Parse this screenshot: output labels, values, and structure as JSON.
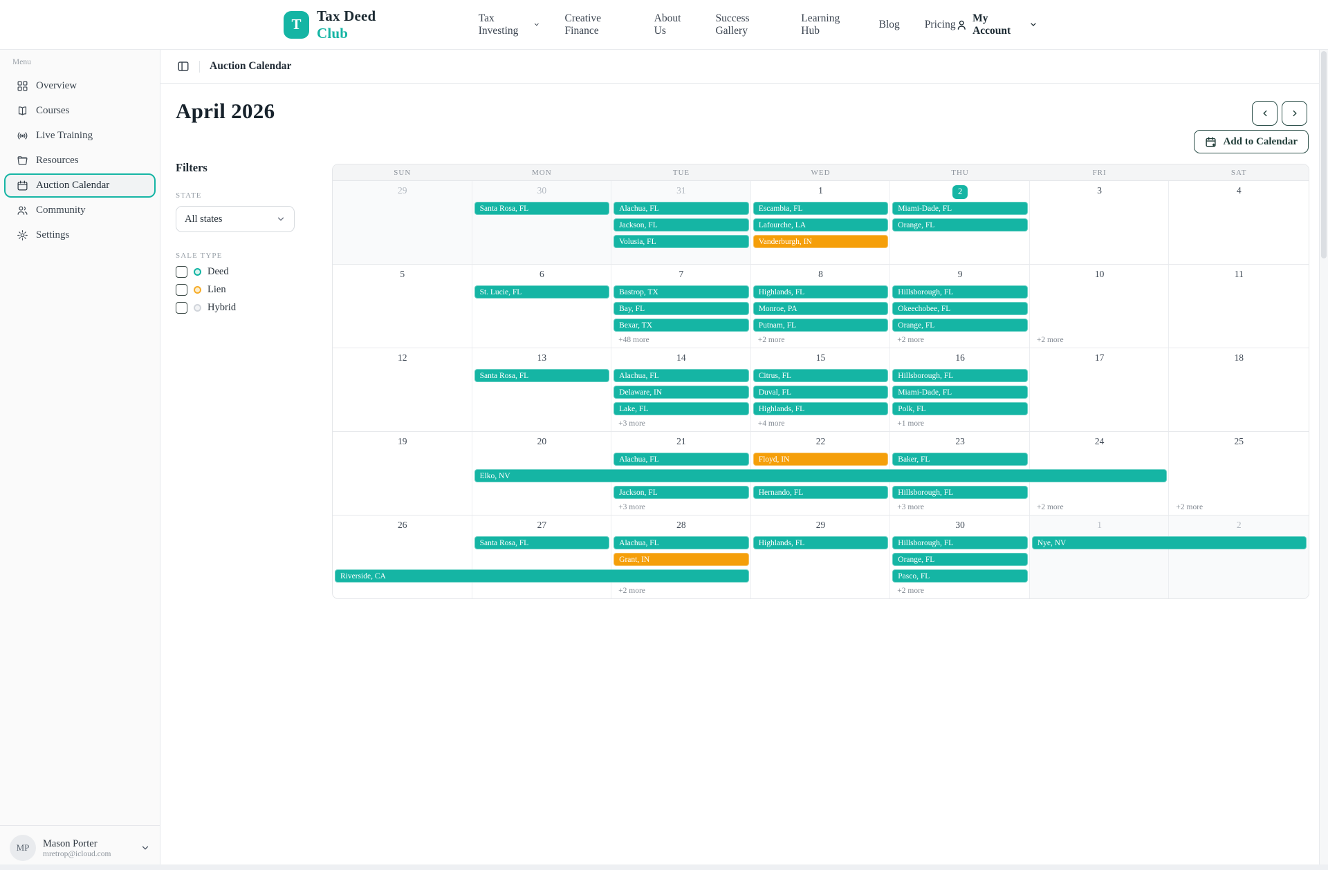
{
  "colors": {
    "teal": "#15b5a4",
    "orange": "#f59f0a"
  },
  "brand": {
    "logo_letter": "T",
    "name_primary": "Tax Deed",
    "name_accent": "Club"
  },
  "top_nav": {
    "items": [
      {
        "label": "Tax Investing",
        "dropdown": true
      },
      {
        "label": "Creative Finance",
        "dropdown": false
      },
      {
        "label": "About Us",
        "dropdown": false
      },
      {
        "label": "Success Gallery",
        "dropdown": false
      },
      {
        "label": "Learning Hub",
        "dropdown": false
      },
      {
        "label": "Blog",
        "dropdown": false
      },
      {
        "label": "Pricing",
        "dropdown": false
      }
    ],
    "account_label": "My Account"
  },
  "sidebar": {
    "section_label": "Menu",
    "items": [
      {
        "label": "Overview",
        "icon": "grid-icon",
        "active": false
      },
      {
        "label": "Courses",
        "icon": "book-icon",
        "active": false
      },
      {
        "label": "Live Training",
        "icon": "broadcast-icon",
        "active": false
      },
      {
        "label": "Resources",
        "icon": "folder-icon",
        "active": false
      },
      {
        "label": "Auction Calendar",
        "icon": "calendar-icon",
        "active": true
      },
      {
        "label": "Community",
        "icon": "users-icon",
        "active": false
      },
      {
        "label": "Settings",
        "icon": "gear-icon",
        "active": false
      }
    ],
    "user": {
      "initials": "MP",
      "name": "Mason Porter",
      "email": "mretrop@icloud.com"
    }
  },
  "breadcrumb": {
    "title": "Auction Calendar"
  },
  "filters": {
    "title": "Filters",
    "state_label": "STATE",
    "state_value": "All states",
    "sale_type_label": "SALE TYPE",
    "types": [
      {
        "label": "Deed",
        "color": "#15b5a4",
        "fill": "#d9f4ef",
        "checked": false
      },
      {
        "label": "Lien",
        "color": "#f6ad2b",
        "fill": "#fdeecd",
        "checked": false
      },
      {
        "label": "Hybrid",
        "color": "#d1d5db",
        "fill": "#f3f4f6",
        "checked": false
      }
    ]
  },
  "calendar": {
    "month_title": "April 2026",
    "add_button_label": "Add to Calendar",
    "day_headers": [
      "SUN",
      "MON",
      "TUE",
      "WED",
      "THU",
      "FRI",
      "SAT"
    ],
    "weeks": [
      {
        "days": [
          {
            "num": "29",
            "muted": true
          },
          {
            "num": "30",
            "muted": true
          },
          {
            "num": "31",
            "muted": true
          },
          {
            "num": "1"
          },
          {
            "num": "2",
            "today": true
          },
          {
            "num": "3"
          },
          {
            "num": "4"
          }
        ],
        "events": [
          {
            "r": 1,
            "c": 2,
            "s": 1,
            "label": "Santa Rosa, FL",
            "type": "deed"
          },
          {
            "r": 1,
            "c": 3,
            "s": 1,
            "label": "Alachua, FL",
            "type": "deed"
          },
          {
            "r": 1,
            "c": 4,
            "s": 1,
            "label": "Escambia, FL",
            "type": "deed"
          },
          {
            "r": 1,
            "c": 5,
            "s": 1,
            "label": "Miami-Dade, FL",
            "type": "deed"
          },
          {
            "r": 2,
            "c": 3,
            "s": 1,
            "label": "Jackson, FL",
            "type": "deed"
          },
          {
            "r": 2,
            "c": 4,
            "s": 1,
            "label": "Lafourche, LA",
            "type": "deed"
          },
          {
            "r": 2,
            "c": 5,
            "s": 1,
            "label": "Orange, FL",
            "type": "deed"
          },
          {
            "r": 3,
            "c": 3,
            "s": 1,
            "label": "Volusia, FL",
            "type": "deed"
          },
          {
            "r": 3,
            "c": 4,
            "s": 1,
            "label": "Vanderburgh, IN",
            "type": "lien"
          }
        ],
        "mores": []
      },
      {
        "days": [
          {
            "num": "5"
          },
          {
            "num": "6"
          },
          {
            "num": "7"
          },
          {
            "num": "8"
          },
          {
            "num": "9"
          },
          {
            "num": "10"
          },
          {
            "num": "11"
          }
        ],
        "events": [
          {
            "r": 1,
            "c": 2,
            "s": 1,
            "label": "St. Lucie, FL",
            "type": "deed"
          },
          {
            "r": 1,
            "c": 3,
            "s": 1,
            "label": "Bastrop, TX",
            "type": "deed"
          },
          {
            "r": 1,
            "c": 4,
            "s": 1,
            "label": "Highlands, FL",
            "type": "deed"
          },
          {
            "r": 1,
            "c": 5,
            "s": 1,
            "label": "Hillsborough, FL",
            "type": "deed"
          },
          {
            "r": 2,
            "c": 3,
            "s": 1,
            "label": "Bay, FL",
            "type": "deed"
          },
          {
            "r": 2,
            "c": 4,
            "s": 1,
            "label": "Monroe, PA",
            "type": "deed"
          },
          {
            "r": 2,
            "c": 5,
            "s": 1,
            "label": "Okeechobee, FL",
            "type": "deed"
          },
          {
            "r": 3,
            "c": 3,
            "s": 1,
            "label": "Bexar, TX",
            "type": "deed"
          },
          {
            "r": 3,
            "c": 4,
            "s": 1,
            "label": "Putnam, FL",
            "type": "deed"
          },
          {
            "r": 3,
            "c": 5,
            "s": 1,
            "label": "Orange, FL",
            "type": "deed"
          }
        ],
        "mores": [
          {
            "c": 3,
            "label": "+48 more"
          },
          {
            "c": 4,
            "label": "+2 more"
          },
          {
            "c": 5,
            "label": "+2 more"
          },
          {
            "c": 6,
            "label": "+2 more"
          }
        ]
      },
      {
        "days": [
          {
            "num": "12"
          },
          {
            "num": "13"
          },
          {
            "num": "14"
          },
          {
            "num": "15"
          },
          {
            "num": "16"
          },
          {
            "num": "17"
          },
          {
            "num": "18"
          }
        ],
        "events": [
          {
            "r": 1,
            "c": 2,
            "s": 1,
            "label": "Santa Rosa, FL",
            "type": "deed"
          },
          {
            "r": 1,
            "c": 3,
            "s": 1,
            "label": "Alachua, FL",
            "type": "deed"
          },
          {
            "r": 1,
            "c": 4,
            "s": 1,
            "label": "Citrus, FL",
            "type": "deed"
          },
          {
            "r": 1,
            "c": 5,
            "s": 1,
            "label": "Hillsborough, FL",
            "type": "deed"
          },
          {
            "r": 2,
            "c": 3,
            "s": 1,
            "label": "Delaware, IN",
            "type": "deed"
          },
          {
            "r": 2,
            "c": 4,
            "s": 1,
            "label": "Duval, FL",
            "type": "deed"
          },
          {
            "r": 2,
            "c": 5,
            "s": 1,
            "label": "Miami-Dade, FL",
            "type": "deed"
          },
          {
            "r": 3,
            "c": 3,
            "s": 1,
            "label": "Lake, FL",
            "type": "deed"
          },
          {
            "r": 3,
            "c": 4,
            "s": 1,
            "label": "Highlands, FL",
            "type": "deed"
          },
          {
            "r": 3,
            "c": 5,
            "s": 1,
            "label": "Polk, FL",
            "type": "deed"
          }
        ],
        "mores": [
          {
            "c": 3,
            "label": "+3 more"
          },
          {
            "c": 4,
            "label": "+4 more"
          },
          {
            "c": 5,
            "label": "+1 more"
          }
        ]
      },
      {
        "days": [
          {
            "num": "19"
          },
          {
            "num": "20"
          },
          {
            "num": "21"
          },
          {
            "num": "22"
          },
          {
            "num": "23"
          },
          {
            "num": "24"
          },
          {
            "num": "25"
          }
        ],
        "events": [
          {
            "r": 1,
            "c": 3,
            "s": 1,
            "label": "Alachua, FL",
            "type": "deed"
          },
          {
            "r": 1,
            "c": 4,
            "s": 1,
            "label": "Floyd, IN",
            "type": "lien"
          },
          {
            "r": 1,
            "c": 5,
            "s": 1,
            "label": "Baker, FL",
            "type": "deed"
          },
          {
            "r": 2,
            "c": 2,
            "s": 5,
            "label": "Elko, NV",
            "type": "deed"
          },
          {
            "r": 3,
            "c": 3,
            "s": 1,
            "label": "Jackson, FL",
            "type": "deed"
          },
          {
            "r": 3,
            "c": 4,
            "s": 1,
            "label": "Hernando, FL",
            "type": "deed"
          },
          {
            "r": 3,
            "c": 5,
            "s": 1,
            "label": "Hillsborough, FL",
            "type": "deed"
          }
        ],
        "mores": [
          {
            "c": 3,
            "label": "+3 more"
          },
          {
            "c": 5,
            "label": "+3 more"
          },
          {
            "c": 6,
            "label": "+2 more"
          },
          {
            "c": 7,
            "label": "+2 more"
          }
        ]
      },
      {
        "days": [
          {
            "num": "26"
          },
          {
            "num": "27"
          },
          {
            "num": "28"
          },
          {
            "num": "29"
          },
          {
            "num": "30"
          },
          {
            "num": "1",
            "muted": true
          },
          {
            "num": "2",
            "muted": true
          }
        ],
        "events": [
          {
            "r": 1,
            "c": 2,
            "s": 1,
            "label": "Santa Rosa, FL",
            "type": "deed"
          },
          {
            "r": 1,
            "c": 3,
            "s": 1,
            "label": "Alachua, FL",
            "type": "deed"
          },
          {
            "r": 1,
            "c": 4,
            "s": 1,
            "label": "Highlands, FL",
            "type": "deed"
          },
          {
            "r": 1,
            "c": 5,
            "s": 1,
            "label": "Hillsborough, FL",
            "type": "deed"
          },
          {
            "r": 1,
            "c": 6,
            "s": 2,
            "label": "Nye, NV",
            "type": "deed"
          },
          {
            "r": 2,
            "c": 3,
            "s": 1,
            "label": "Grant, IN",
            "type": "lien"
          },
          {
            "r": 2,
            "c": 5,
            "s": 1,
            "label": "Orange, FL",
            "type": "deed"
          },
          {
            "r": 3,
            "c": 1,
            "s": 3,
            "label": "Riverside, CA",
            "type": "deed"
          },
          {
            "r": 3,
            "c": 5,
            "s": 1,
            "label": "Pasco, FL",
            "type": "deed"
          }
        ],
        "mores": [
          {
            "c": 3,
            "label": "+2 more"
          },
          {
            "c": 5,
            "label": "+2 more"
          }
        ]
      }
    ]
  }
}
